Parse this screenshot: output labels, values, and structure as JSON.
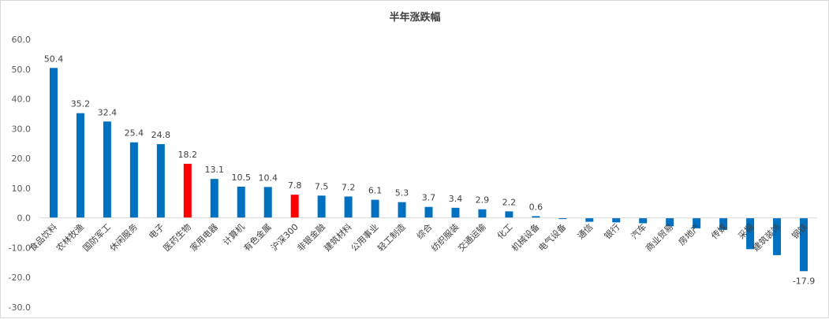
{
  "chart_data": {
    "type": "bar",
    "title": "半年涨跌幅",
    "xlabel": "",
    "ylabel": "",
    "ylim": [
      -30,
      60
    ],
    "yticks": [
      "60.0",
      "50.0",
      "40.0",
      "30.0",
      "20.0",
      "10.0",
      "0.0",
      "-10.0",
      "-20.0",
      "-30.0"
    ],
    "ytick_values": [
      60,
      50,
      40,
      30,
      20,
      10,
      0,
      -10,
      -20,
      -30
    ],
    "grid": false,
    "legend": "none",
    "colors": {
      "default": "#0070c0",
      "highlight": "#ff0000"
    },
    "categories": [
      "食品饮料",
      "农林牧渔",
      "国防军工",
      "休闲服务",
      "电子",
      "医药生物",
      "家用电器",
      "计算机",
      "有色金属",
      "沪深300",
      "非银金融",
      "建筑材料",
      "公用事业",
      "轻工制造",
      "综合",
      "纺织服装",
      "交通运输",
      "化工",
      "机械设备",
      "电气设备",
      "通信",
      "银行",
      "汽车",
      "商业贸易",
      "房地产",
      "传媒",
      "采掘",
      "建筑装饰",
      "钢铁"
    ],
    "values": [
      50.4,
      35.2,
      32.4,
      25.4,
      24.8,
      18.2,
      13.1,
      10.5,
      10.4,
      7.8,
      7.5,
      7.2,
      6.1,
      5.3,
      3.7,
      3.4,
      2.9,
      2.2,
      0.6,
      -0.4,
      -1.3,
      -1.5,
      -1.8,
      -2.8,
      -3.5,
      -4.0,
      -10.5,
      -12.5,
      -17.9
    ],
    "data_labels": [
      "50.4",
      "35.2",
      "32.4",
      "25.4",
      "24.8",
      "18.2",
      "13.1",
      "10.5",
      "10.4",
      "7.8",
      "7.5",
      "7.2",
      "6.1",
      "5.3",
      "3.7",
      "3.4",
      "2.9",
      "2.2",
      "0.6",
      "",
      "",
      "",
      "",
      "",
      "",
      "",
      "",
      "",
      "-17.9"
    ],
    "highlight": [
      "医药生物",
      "沪深300"
    ]
  }
}
